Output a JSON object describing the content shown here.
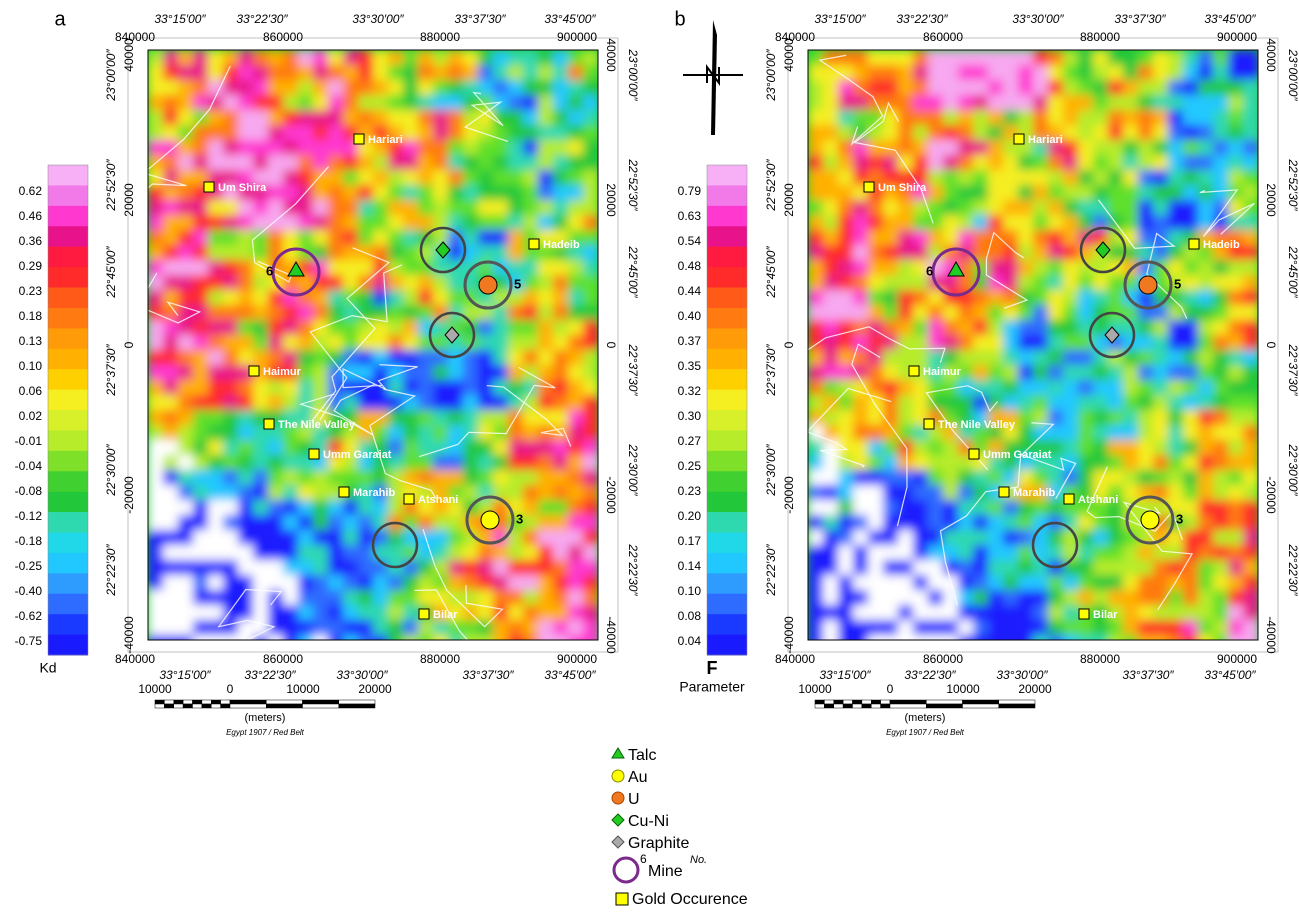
{
  "panels": [
    {
      "label": "a",
      "map": {
        "lon": [
          "33°15′00″",
          "33°22′30″",
          "33°30′00″",
          "33°37′30″",
          "33°45′00″"
        ],
        "lat": [
          "23°00′00″",
          "22°52′30″",
          "22°45′00″",
          "22°37′30″",
          "22°30′00″",
          "22°22′30″"
        ],
        "easting": [
          "840000",
          "860000",
          "880000",
          "900000"
        ],
        "northing": [
          "40000",
          "20000",
          "0",
          "-20000",
          "-40000"
        ],
        "places": [
          "Hariari",
          "Um Shira",
          "Hadeib",
          "Haimur",
          "The Nile Valley",
          "Umm Garaiat",
          "Marahib",
          "Atshani",
          "Bilar"
        ],
        "mines": [
          "6",
          "5",
          "3"
        ]
      },
      "colorbar": {
        "ticks": [
          "0.62",
          "0.46",
          "0.36",
          "0.29",
          "0.23",
          "0.18",
          "0.13",
          "0.10",
          "0.06",
          "0.02",
          "-0.01",
          "-0.04",
          "-0.08",
          "-0.12",
          "-0.18",
          "-0.25",
          "-0.40",
          "-0.62",
          "-0.75"
        ],
        "title": "Kd"
      },
      "scalebar": {
        "labels": [
          "10000",
          "0",
          "10000",
          "20000"
        ],
        "unit": "(meters)",
        "datum": "Egypt 1907 / Red Belt"
      }
    },
    {
      "label": "b",
      "map": {
        "lon": [
          "33°15′00″",
          "33°22′30″",
          "33°30′00″",
          "33°37′30″",
          "33°45′00″"
        ],
        "lat": [
          "23°00′00″",
          "22°52′30″",
          "22°45′00″",
          "22°37′30″",
          "22°30′00″",
          "22°22′30″"
        ],
        "easting": [
          "840000",
          "860000",
          "880000",
          "900000"
        ],
        "northing": [
          "40000",
          "20000",
          "0",
          "-20000",
          "-40000"
        ],
        "places": [
          "Hariari",
          "Um Shira",
          "Hadeib",
          "Haimur",
          "The Nile Valley",
          "Umm Garaiat",
          "Marahib",
          "Atshani",
          "Bilar"
        ],
        "mines": [
          "6",
          "5",
          "3"
        ]
      },
      "colorbar": {
        "ticks": [
          "0.79",
          "0.63",
          "0.54",
          "0.48",
          "0.44",
          "0.40",
          "0.37",
          "0.35",
          "0.32",
          "0.30",
          "0.27",
          "0.25",
          "0.23",
          "0.20",
          "0.17",
          "0.14",
          "0.10",
          "0.08",
          "0.04"
        ],
        "title": "F",
        "subtitle": "Parameter"
      },
      "scalebar": {
        "labels": [
          "10000",
          "0",
          "10000",
          "20000"
        ],
        "unit": "(meters)",
        "datum": "Egypt 1907 / Red Belt"
      }
    }
  ],
  "legend": {
    "items": [
      "Talc",
      "Au",
      "U",
      "Cu-Ni",
      "Graphite"
    ],
    "mine": {
      "label": "Mine",
      "number": "6",
      "superscript": "No."
    },
    "gold": "Gold Occurence"
  }
}
